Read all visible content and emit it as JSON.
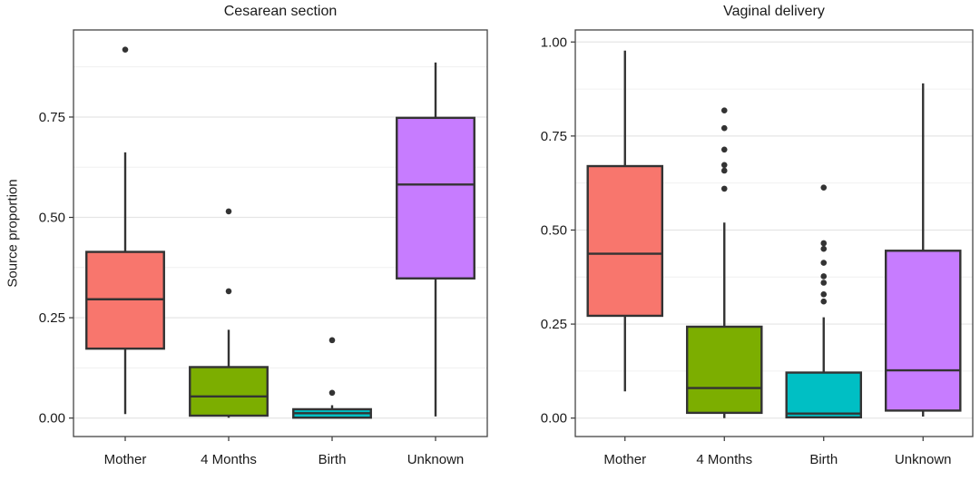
{
  "figure": {
    "ylabel": "Source proportion",
    "background": "#FFFFFF",
    "text_color": "#1A1A1A",
    "grid_major_color": "#E5E5E5",
    "grid_minor_color": "#F0F0F0",
    "panel_border_color": "#454545",
    "box_stroke_color": "#333333",
    "outlier_color": "#333333"
  },
  "chart_data": [
    {
      "type": "boxplot",
      "title": "Cesarean section",
      "ylabel": "Source proportion",
      "grid": true,
      "categories": [
        "Mother",
        "4 Months",
        "Birth",
        "Unknown"
      ],
      "yticks": [
        0,
        0.25,
        0.5,
        0.75
      ],
      "ytick_labels": [
        "0.00",
        "0.25",
        "0.50",
        "0.75"
      ],
      "ylim": [
        -0.046,
        0.967
      ],
      "series": [
        {
          "name": "Mother",
          "color": "#F8766D",
          "whisker_low": 0.01,
          "q1": 0.173,
          "median": 0.296,
          "q3": 0.414,
          "whisker_high": 0.662,
          "outliers": [
            0.918
          ]
        },
        {
          "name": "4 Months",
          "color": "#7CAE00",
          "whisker_low": 0.001,
          "q1": 0.006,
          "median": 0.054,
          "q3": 0.127,
          "whisker_high": 0.22,
          "outliers": [
            0.515,
            0.316
          ]
        },
        {
          "name": "Birth",
          "color": "#00BFC4",
          "whisker_low": 0.0,
          "q1": 0.001,
          "median": 0.012,
          "q3": 0.022,
          "whisker_high": 0.032,
          "outliers": [
            0.194,
            0.063
          ]
        },
        {
          "name": "Unknown",
          "color": "#C77CFF",
          "whisker_low": 0.004,
          "q1": 0.348,
          "median": 0.582,
          "q3": 0.748,
          "whisker_high": 0.886,
          "outliers": []
        }
      ]
    },
    {
      "type": "boxplot",
      "title": "Vaginal delivery",
      "ylabel": "",
      "grid": true,
      "categories": [
        "Mother",
        "4 Months",
        "Birth",
        "Unknown"
      ],
      "yticks": [
        0,
        0.25,
        0.5,
        0.75,
        1.0
      ],
      "ytick_labels": [
        "0.00",
        "0.25",
        "0.50",
        "0.75",
        "1.00"
      ],
      "ylim": [
        -0.049,
        1.032
      ],
      "series": [
        {
          "name": "Mother",
          "color": "#F8766D",
          "whisker_low": 0.071,
          "q1": 0.272,
          "median": 0.437,
          "q3": 0.67,
          "whisker_high": 0.977,
          "outliers": []
        },
        {
          "name": "4 Months",
          "color": "#7CAE00",
          "whisker_low": 0.0,
          "q1": 0.014,
          "median": 0.08,
          "q3": 0.243,
          "whisker_high": 0.52,
          "outliers": [
            0.818,
            0.771,
            0.714,
            0.673,
            0.658,
            0.61
          ]
        },
        {
          "name": "Birth",
          "color": "#00BFC4",
          "whisker_low": 0.0,
          "q1": 0.002,
          "median": 0.012,
          "q3": 0.121,
          "whisker_high": 0.268,
          "outliers": [
            0.613,
            0.465,
            0.45,
            0.413,
            0.377,
            0.36,
            0.329,
            0.31
          ]
        },
        {
          "name": "Unknown",
          "color": "#C77CFF",
          "whisker_low": 0.004,
          "q1": 0.02,
          "median": 0.127,
          "q3": 0.445,
          "whisker_high": 0.89,
          "outliers": []
        }
      ]
    }
  ]
}
